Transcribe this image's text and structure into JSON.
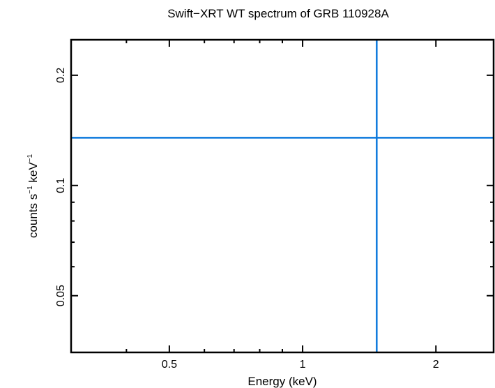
{
  "chart_data": {
    "type": "scatter",
    "title": "Swift−XRT WT spectrum of GRB 110928A",
    "xlabel": "Energy (keV)",
    "ylabel_main": "counts s",
    "ylabel_exp1": "−1",
    "ylabel_mid": " keV",
    "ylabel_exp2": "−1",
    "x_scale": "log",
    "y_scale": "log",
    "xlim": [
      0.3,
      2.7
    ],
    "ylim": [
      0.035,
      0.25
    ],
    "x_ticks": [
      {
        "value": 0.5,
        "label": "0.5"
      },
      {
        "value": 1,
        "label": "1"
      },
      {
        "value": 2,
        "label": "2"
      }
    ],
    "y_ticks": [
      {
        "value": 0.05,
        "label": "0.05"
      },
      {
        "value": 0.1,
        "label": "0.1"
      },
      {
        "value": 0.2,
        "label": "0.2"
      }
    ],
    "x_minor_ticks": [
      0.4,
      0.6,
      0.7,
      0.8,
      0.9
    ],
    "y_minor_ticks": [
      0.06,
      0.07,
      0.08,
      0.09
    ],
    "series": [
      {
        "x": 1.47,
        "y": 0.135,
        "color": "#0a78dc"
      }
    ],
    "grid": false,
    "line_color": "#0a78dc",
    "frame_color": "#000000"
  }
}
